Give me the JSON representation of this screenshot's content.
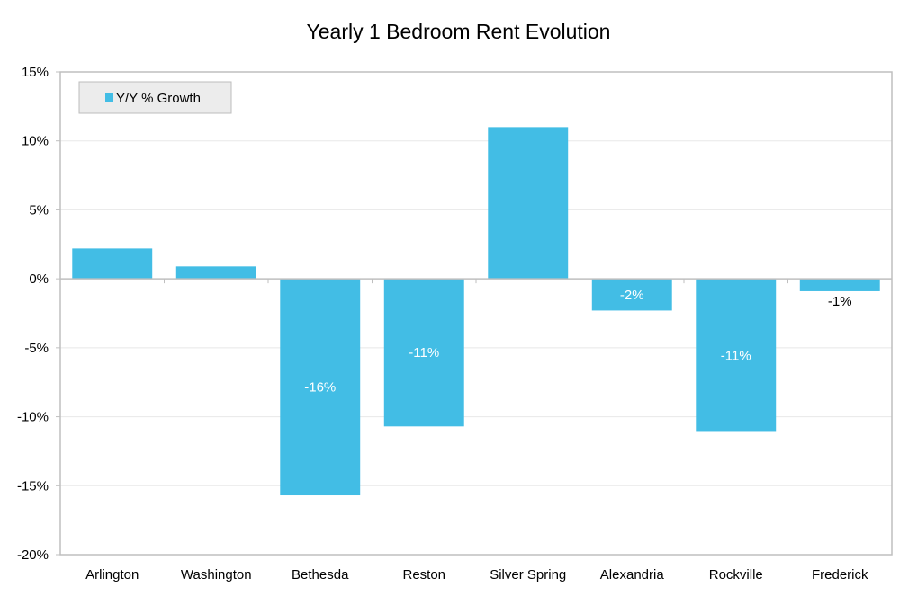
{
  "chart_data": {
    "type": "bar",
    "title": "Yearly 1 Bedroom Rent Evolution",
    "categories": [
      "Arlington",
      "Washington",
      "Bethesda",
      "Reston",
      "Silver Spring",
      "Alexandria",
      "Rockville",
      "Frederick"
    ],
    "series": [
      {
        "name": "Y/Y % Growth",
        "values": [
          2.2,
          0.9,
          -15.7,
          -10.7,
          11.0,
          -2.3,
          -11.1,
          -0.9
        ],
        "data_labels": [
          "",
          "",
          "-16%",
          "-11%",
          "",
          "-2%",
          "-11%",
          "-1%"
        ]
      }
    ],
    "ylim": [
      -20,
      15
    ],
    "yticks": [
      15,
      10,
      5,
      0,
      -5,
      -10,
      -15,
      -20
    ],
    "ytick_labels": [
      "15%",
      "10%",
      "5%",
      "0%",
      "-5%",
      "-10%",
      "-15%",
      "-20%"
    ],
    "xlabel": "",
    "ylabel": "",
    "grid": true,
    "legend_position": "top-left",
    "colors": {
      "bar": "#42BDE5",
      "grid": "#e8e8e8",
      "axis": "#bfbfbf",
      "legend_bg": "#ececec",
      "legend_border": "#bdbdbd",
      "label_inside": "#ffffff",
      "label_outside": "#000000"
    }
  }
}
